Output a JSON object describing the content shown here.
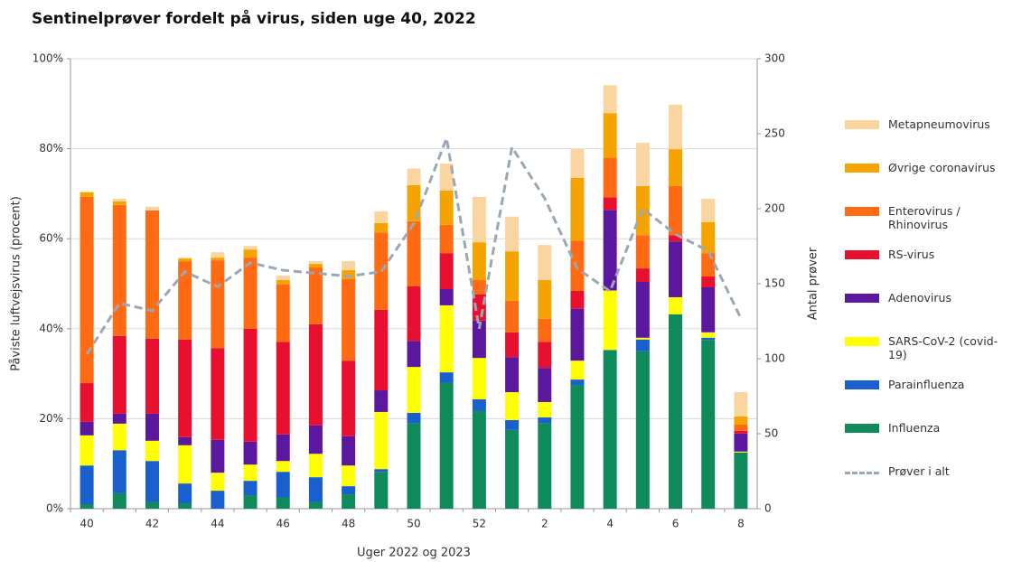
{
  "chart_data": {
    "type": "bar",
    "stacked": true,
    "title": "Sentinelprøver fordelt på virus, siden uge 40, 2022",
    "x_label": "Uger 2022 og 2023",
    "y_label": "Påviste luftvejsvirus (procent)",
    "y2_label": "Antal prøver",
    "categories": [
      "40",
      null,
      "42",
      null,
      "44",
      null,
      "46",
      null,
      "48",
      null,
      "50",
      null,
      "52",
      null,
      "2",
      null,
      "4",
      null,
      "6",
      null,
      "8"
    ],
    "series": [
      {
        "name": "Influenza",
        "color": "#0e8a5b",
        "values": [
          1,
          3.5,
          1.5,
          1.2,
          0,
          3,
          2.5,
          1.5,
          3.2,
          8.2,
          19,
          28,
          21.7,
          17.5,
          19,
          27.5,
          35.2,
          35,
          43.2,
          37.5,
          12.5
        ]
      },
      {
        "name": "Parainfluenza",
        "color": "#1a5fce",
        "values": [
          8.6,
          9.5,
          9.1,
          4.4,
          4,
          3.2,
          5.7,
          5.5,
          1.8,
          0.6,
          2.3,
          2.3,
          2.6,
          2.2,
          1.3,
          1.2,
          0.1,
          2.6,
          0,
          0.5,
          0
        ]
      },
      {
        "name": "SARS-CoV-2 (covid-19)",
        "color": "#ffff00",
        "values": [
          6.7,
          5.9,
          4.5,
          8.5,
          4,
          3.6,
          2.4,
          5.2,
          4.6,
          12.7,
          10.2,
          14.9,
          9.2,
          6.2,
          3.4,
          4.2,
          13.2,
          0.4,
          3.8,
          1.2,
          0.2
        ]
      },
      {
        "name": "Adenovirus",
        "color": "#5b189e",
        "values": [
          3,
          2.2,
          6,
          1.8,
          7.3,
          5.1,
          5.9,
          6.3,
          6.5,
          4.8,
          5.8,
          3.6,
          8.3,
          7.8,
          7.6,
          11.5,
          17.9,
          12.4,
          12.4,
          10,
          4
        ]
      },
      {
        "name": "RS-virus",
        "color": "#e8102e",
        "values": [
          8.6,
          17.3,
          16.7,
          21.7,
          20.4,
          25.1,
          20.6,
          22.5,
          16.8,
          17.9,
          12.1,
          8,
          5.8,
          5.5,
          5.8,
          4,
          2.8,
          3,
          1.4,
          2.4,
          0.6
        ]
      },
      {
        "name": "Enterovirus / Rhinovirus",
        "color": "#ff6a13",
        "values": [
          41.4,
          29.1,
          28.5,
          17.4,
          19.5,
          15.8,
          12.7,
          12.6,
          18.1,
          17.2,
          14.5,
          6.3,
          3.2,
          7,
          5.1,
          11.2,
          8.8,
          7.4,
          10.9,
          5.2,
          1.4
        ]
      },
      {
        "name": "Øvrige coronavirus",
        "color": "#f5a300",
        "values": [
          1,
          0.8,
          0,
          0.6,
          0.6,
          1.8,
          1,
          0.8,
          2,
          2.1,
          8,
          7.6,
          8.4,
          11,
          8.6,
          13.9,
          9.9,
          10.9,
          8.2,
          6.9,
          1.8
        ]
      },
      {
        "name": "Metapneumovirus",
        "color": "#fbd5a0",
        "values": [
          0.2,
          0.6,
          0.8,
          0.2,
          1.2,
          0.8,
          1,
          0.6,
          2,
          2.6,
          3.7,
          6,
          10.1,
          7.7,
          7.8,
          6.4,
          6.2,
          9.6,
          9.9,
          5.2,
          5.4
        ]
      },
      {
        "name": "Prøver i alt",
        "type": "line",
        "axis": "y2",
        "dashed": true,
        "color": "#9aa8b5",
        "values": [
          103,
          137,
          132,
          158,
          148,
          164,
          159,
          157,
          155,
          158,
          190,
          247,
          120,
          241,
          207,
          160,
          145,
          200,
          183,
          172,
          127
        ]
      }
    ],
    "ylim": [
      0,
      100
    ],
    "yticks": [
      {
        "value": 0,
        "label": "0%"
      },
      {
        "value": 20,
        "label": "20%"
      },
      {
        "value": 40,
        "label": "40%"
      },
      {
        "value": 60,
        "label": "60%"
      },
      {
        "value": 80,
        "label": "80%"
      },
      {
        "value": 100,
        "label": "100%"
      }
    ],
    "y2lim": [
      0,
      300
    ],
    "y2ticks": [
      0,
      50,
      100,
      150,
      200,
      250,
      300
    ],
    "grid": true,
    "legend": "right"
  }
}
